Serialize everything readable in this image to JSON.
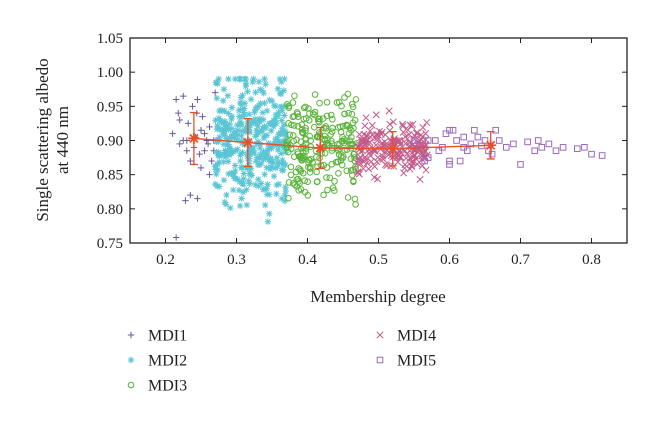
{
  "chart_data": {
    "type": "scatter",
    "title": "",
    "xlabel": "Membership degree",
    "ylabel_lines": [
      "Single scattering albedo",
      "at 440 nm"
    ],
    "xlim": [
      0.15,
      0.85
    ],
    "ylim": [
      0.75,
      1.05
    ],
    "xticks": [
      "0.2",
      "0.3",
      "0.4",
      "0.5",
      "0.6",
      "0.7",
      "0.8"
    ],
    "yticks": [
      "0.75",
      "0.80",
      "0.85",
      "0.90",
      "0.95",
      "1.00",
      "1.05"
    ],
    "legend_position": "bottom",
    "series": [
      {
        "name": "MDI1",
        "marker": "plus",
        "color": "#6a5a9e",
        "points": [
          [
            0.21,
            0.91
          ],
          [
            0.215,
            0.96
          ],
          [
            0.22,
            0.93
          ],
          [
            0.225,
            0.965
          ],
          [
            0.23,
            0.9
          ],
          [
            0.232,
            0.925
          ],
          [
            0.235,
            0.87
          ],
          [
            0.238,
            0.95
          ],
          [
            0.24,
            0.89
          ],
          [
            0.242,
            0.905
          ],
          [
            0.245,
            0.96
          ],
          [
            0.248,
            0.88
          ],
          [
            0.25,
            0.915
          ],
          [
            0.252,
            0.935
          ],
          [
            0.255,
            0.91
          ],
          [
            0.258,
            0.9
          ],
          [
            0.26,
            0.895
          ],
          [
            0.262,
            0.92
          ],
          [
            0.265,
            0.87
          ],
          [
            0.268,
            0.885
          ],
          [
            0.27,
            0.97
          ],
          [
            0.235,
            0.82
          ],
          [
            0.228,
            0.812
          ],
          [
            0.245,
            0.815
          ],
          [
            0.215,
            0.758
          ],
          [
            0.225,
            0.9
          ],
          [
            0.23,
            0.885
          ],
          [
            0.25,
            0.86
          ],
          [
            0.262,
            0.85
          ],
          [
            0.218,
            0.94
          ],
          [
            0.244,
            0.94
          ],
          [
            0.255,
            0.885
          ],
          [
            0.268,
            0.9
          ],
          [
            0.22,
            0.895
          ]
        ]
      },
      {
        "name": "MDI2",
        "marker": "asterisk",
        "color": "#5bc5d4",
        "generate": {
          "count": 360,
          "x_range": [
            0.27,
            0.37
          ],
          "y_center": 0.9,
          "y_spread": 0.045,
          "seed": 7
        }
      },
      {
        "name": "MDI3",
        "marker": "circle",
        "color": "#5ab33a",
        "generate": {
          "count": 230,
          "x_range": [
            0.37,
            0.47
          ],
          "y_center": 0.89,
          "y_spread": 0.035,
          "seed": 13
        }
      },
      {
        "name": "MDI4",
        "marker": "cross",
        "color": "#c45a8a",
        "generate": {
          "count": 200,
          "x_range": [
            0.47,
            0.57
          ],
          "y_center": 0.89,
          "y_spread": 0.018,
          "seed": 29
        }
      },
      {
        "name": "MDI5",
        "marker": "square",
        "color": "#9a6ac0",
        "points": [
          [
            0.57,
            0.875
          ],
          [
            0.58,
            0.9
          ],
          [
            0.585,
            0.885
          ],
          [
            0.59,
            0.89
          ],
          [
            0.595,
            0.91
          ],
          [
            0.6,
            0.87
          ],
          [
            0.605,
            0.915
          ],
          [
            0.61,
            0.9
          ],
          [
            0.615,
            0.87
          ],
          [
            0.62,
            0.905
          ],
          [
            0.625,
            0.885
          ],
          [
            0.63,
            0.895
          ],
          [
            0.635,
            0.915
          ],
          [
            0.64,
            0.905
          ],
          [
            0.645,
            0.892
          ],
          [
            0.65,
            0.9
          ],
          [
            0.655,
            0.885
          ],
          [
            0.66,
            0.88
          ],
          [
            0.665,
            0.915
          ],
          [
            0.67,
            0.9
          ],
          [
            0.68,
            0.89
          ],
          [
            0.69,
            0.895
          ],
          [
            0.7,
            0.865
          ],
          [
            0.71,
            0.898
          ],
          [
            0.72,
            0.885
          ],
          [
            0.725,
            0.9
          ],
          [
            0.73,
            0.89
          ],
          [
            0.74,
            0.895
          ],
          [
            0.75,
            0.885
          ],
          [
            0.76,
            0.89
          ],
          [
            0.78,
            0.888
          ],
          [
            0.79,
            0.89
          ],
          [
            0.8,
            0.88
          ],
          [
            0.815,
            0.878
          ],
          [
            0.6,
            0.865
          ],
          [
            0.62,
            0.89
          ],
          [
            0.55,
            0.9
          ],
          [
            0.565,
            0.87
          ],
          [
            0.57,
            0.9
          ],
          [
            0.6,
            0.915
          ]
        ]
      }
    ],
    "mean_line": {
      "color": "#e8502a",
      "points": [
        [
          0.24,
          0.903
        ],
        [
          0.316,
          0.897
        ],
        [
          0.418,
          0.889
        ],
        [
          0.52,
          0.888
        ],
        [
          0.658,
          0.893
        ]
      ],
      "errors": [
        0.038,
        0.035,
        0.03,
        0.025,
        0.02
      ]
    }
  }
}
